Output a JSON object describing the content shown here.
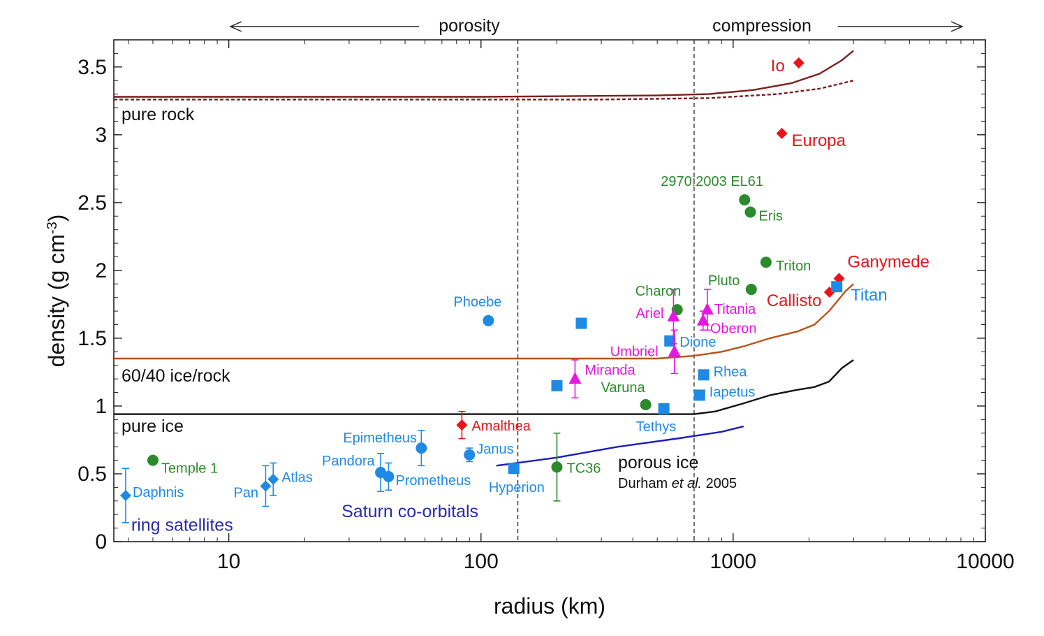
{
  "chart_data": {
    "type": "scatter",
    "xscale": "log",
    "xlim": [
      3.5,
      10000
    ],
    "ylim": [
      0,
      3.7
    ],
    "xlabel": "radius (km)",
    "ylabel": "density (g cm",
    "ylabel_sup": "-3",
    "ylabel_close": ")",
    "xticks": [
      {
        "value": 10,
        "label": "10"
      },
      {
        "value": 100,
        "label": "100"
      },
      {
        "value": 1000,
        "label": "1000"
      },
      {
        "value": 10000,
        "label": "10000"
      }
    ],
    "yticks": [
      {
        "value": 0,
        "label": "0"
      },
      {
        "value": 0.5,
        "label": "0.5"
      },
      {
        "value": 1,
        "label": "1"
      },
      {
        "value": 1.5,
        "label": "1.5"
      },
      {
        "value": 2,
        "label": "2"
      },
      {
        "value": 2.5,
        "label": "2.5"
      },
      {
        "value": 3,
        "label": "3"
      },
      {
        "value": 3.5,
        "label": "3.5"
      }
    ],
    "top_annotations": {
      "left": "porosity",
      "right": "compression"
    },
    "vlines": [
      140,
      700
    ],
    "colors": {
      "red": "#e8141b",
      "blue": "#1e8ae6",
      "green": "#2b8a2b",
      "magenta": "#e617e0",
      "navy": "#2a2aa8"
    },
    "curves": [
      {
        "name": "pure rock",
        "label": "pure rock",
        "color": "#7a1f1f",
        "dash": false,
        "points": [
          [
            3.5,
            3.28
          ],
          [
            100,
            3.28
          ],
          [
            500,
            3.29
          ],
          [
            800,
            3.3
          ],
          [
            1200,
            3.33
          ],
          [
            1700,
            3.38
          ],
          [
            2200,
            3.45
          ],
          [
            2700,
            3.55
          ],
          [
            3000,
            3.62
          ]
        ]
      },
      {
        "name": "pure rock (dashed)",
        "label": "",
        "color": "#7a1f1f",
        "dash": true,
        "points": [
          [
            3.5,
            3.26
          ],
          [
            300,
            3.26
          ],
          [
            800,
            3.27
          ],
          [
            1500,
            3.3
          ],
          [
            2200,
            3.34
          ],
          [
            3000,
            3.4
          ]
        ]
      },
      {
        "name": "60/40 ice/rock",
        "label": "60/40 ice/rock",
        "color": "#b8521a",
        "dash": false,
        "points": [
          [
            3.5,
            1.35
          ],
          [
            100,
            1.35
          ],
          [
            500,
            1.35
          ],
          [
            700,
            1.37
          ],
          [
            900,
            1.4
          ],
          [
            1100,
            1.44
          ],
          [
            1400,
            1.5
          ],
          [
            1800,
            1.55
          ],
          [
            2100,
            1.6
          ],
          [
            2400,
            1.7
          ],
          [
            2800,
            1.85
          ],
          [
            3000,
            1.9
          ]
        ]
      },
      {
        "name": "pure ice",
        "label": "pure ice",
        "color": "#111111",
        "dash": false,
        "points": [
          [
            3.5,
            0.94
          ],
          [
            700,
            0.94
          ],
          [
            850,
            0.96
          ],
          [
            1100,
            1.02
          ],
          [
            1400,
            1.08
          ],
          [
            1800,
            1.12
          ],
          [
            2100,
            1.14
          ],
          [
            2400,
            1.18
          ],
          [
            2700,
            1.28
          ],
          [
            3000,
            1.34
          ]
        ]
      },
      {
        "name": "porous ice",
        "label": "porous ice",
        "sublabel_prefix": "Durham ",
        "sublabel_italic": "et al.",
        "sublabel_suffix": " 2005",
        "color": "#1b1bc4",
        "dash": false,
        "points": [
          [
            115,
            0.56
          ],
          [
            200,
            0.62
          ],
          [
            350,
            0.7
          ],
          [
            600,
            0.76
          ],
          [
            900,
            0.81
          ],
          [
            1100,
            0.85
          ]
        ]
      }
    ],
    "points": [
      {
        "name": "Io",
        "r": 1820,
        "d": 3.53,
        "marker": "diamond",
        "color": "red",
        "label_dx": -40,
        "label_dy": 12,
        "size": "big"
      },
      {
        "name": "Europa",
        "r": 1560,
        "d": 3.01,
        "marker": "diamond",
        "color": "red",
        "label_dx": 14,
        "label_dy": 18,
        "size": "big"
      },
      {
        "name": "Ganymede",
        "r": 2630,
        "d": 1.94,
        "marker": "diamond",
        "color": "red",
        "label_dx": 12,
        "label_dy": -16,
        "size": "big"
      },
      {
        "name": "Callisto",
        "r": 2410,
        "d": 1.84,
        "marker": "diamond",
        "color": "red",
        "label_dx": -90,
        "label_dy": 20,
        "size": "big"
      },
      {
        "name": "Amalthea",
        "r": 84,
        "d": 0.86,
        "marker": "diamond",
        "color": "red",
        "err": 0.1,
        "label_dx": 14,
        "label_dy": 8
      },
      {
        "name": "Titan",
        "r": 2575,
        "d": 1.88,
        "marker": "square",
        "color": "blue",
        "label_dx": 20,
        "label_dy": 20,
        "size": "big"
      },
      {
        "name": "Phoebe",
        "r": 107,
        "d": 1.63,
        "marker": "circle",
        "color": "blue",
        "err": 0.03,
        "label_dx": -50,
        "label_dy": -20
      },
      {
        "name": "",
        "r": 250,
        "d": 1.61,
        "marker": "square",
        "color": "blue"
      },
      {
        "name": "Dione",
        "r": 561,
        "d": 1.48,
        "marker": "square",
        "color": "blue",
        "label_dx": 14,
        "label_dy": 8
      },
      {
        "name": "Rhea",
        "r": 764,
        "d": 1.23,
        "marker": "square",
        "color": "blue",
        "label_dx": 14,
        "label_dy": 2
      },
      {
        "name": "Iapetus",
        "r": 736,
        "d": 1.08,
        "marker": "square",
        "color": "blue",
        "label_dx": 14,
        "label_dy": 2
      },
      {
        "name": "",
        "r": 200,
        "d": 1.15,
        "marker": "square",
        "color": "blue"
      },
      {
        "name": "Tethys",
        "r": 531,
        "d": 0.98,
        "marker": "square",
        "color": "blue",
        "label_dx": -40,
        "label_dy": 32
      },
      {
        "name": "Hyperion",
        "r": 135,
        "d": 0.54,
        "marker": "square",
        "color": "blue",
        "label_dx": -36,
        "label_dy": 34
      },
      {
        "name": "Janus",
        "r": 90,
        "d": 0.64,
        "marker": "circle",
        "color": "blue",
        "err": 0.05,
        "label_dx": 10,
        "label_dy": -2
      },
      {
        "name": "Epimetheus",
        "r": 58,
        "d": 0.69,
        "marker": "circle",
        "color": "blue",
        "err": 0.13,
        "label_dx": -112,
        "label_dy": -8
      },
      {
        "name": "Pandora",
        "r": 40,
        "d": 0.51,
        "marker": "circle",
        "color": "blue",
        "err": 0.14,
        "label_dx": -84,
        "label_dy": -10
      },
      {
        "name": "Prometheus",
        "r": 43,
        "d": 0.48,
        "marker": "circle",
        "color": "blue",
        "err": 0.1,
        "label_dx": 10,
        "label_dy": 12
      },
      {
        "name": "Atlas",
        "r": 15,
        "d": 0.46,
        "marker": "diamond",
        "color": "blue",
        "err": 0.12,
        "label_dx": 12,
        "label_dy": 4
      },
      {
        "name": "Pan",
        "r": 14,
        "d": 0.41,
        "marker": "diamond",
        "color": "blue",
        "err": 0.15,
        "label_dx": -46,
        "label_dy": 16
      },
      {
        "name": "Daphnis",
        "r": 3.9,
        "d": 0.34,
        "marker": "diamond",
        "color": "blue",
        "err": 0.2,
        "label_dx": 10,
        "label_dy": 2
      },
      {
        "name": "Temple 1",
        "r": 5,
        "d": 0.6,
        "marker": "circle",
        "color": "green",
        "label_dx": 12,
        "label_dy": 18
      },
      {
        "name": "TC36",
        "r": 200,
        "d": 0.55,
        "marker": "circle",
        "color": "green",
        "err": 0.25,
        "label_dx": 14,
        "label_dy": 8
      },
      {
        "name": "Varuna",
        "r": 450,
        "d": 1.01,
        "marker": "circle",
        "color": "green",
        "label_dx": -64,
        "label_dy": -18
      },
      {
        "name": "Charon",
        "r": 600,
        "d": 1.71,
        "marker": "circle",
        "color": "green",
        "label_dx": -60,
        "label_dy": -20
      },
      {
        "name": "Pluto",
        "r": 1180,
        "d": 1.86,
        "marker": "circle",
        "color": "green",
        "label_dx": -62,
        "label_dy": -6
      },
      {
        "name": "Triton",
        "r": 1350,
        "d": 2.06,
        "marker": "circle",
        "color": "green",
        "label_dx": 14,
        "label_dy": 12
      },
      {
        "name": "Eris",
        "r": 1170,
        "d": 2.43,
        "marker": "circle",
        "color": "green",
        "label_dx": 12,
        "label_dy": 12
      },
      {
        "name": "2970:2003 EL61",
        "r": 1110,
        "d": 2.52,
        "marker": "circle",
        "color": "green",
        "label_dx": -120,
        "label_dy": -20
      },
      {
        "name": "Ariel",
        "r": 580,
        "d": 1.66,
        "marker": "triangle",
        "color": "magenta",
        "err": 0.2,
        "label_dx": -54,
        "label_dy": 2
      },
      {
        "name": "Titania",
        "r": 790,
        "d": 1.71,
        "marker": "triangle",
        "color": "magenta",
        "err": 0.15,
        "label_dx": 10,
        "label_dy": 6
      },
      {
        "name": "Oberon",
        "r": 760,
        "d": 1.63,
        "marker": "triangle",
        "color": "magenta",
        "err": 0.07,
        "label_dx": 10,
        "label_dy": 18
      },
      {
        "name": "Umbriel",
        "r": 585,
        "d": 1.4,
        "marker": "triangle",
        "color": "magenta",
        "err": 0.16,
        "label_dx": -92,
        "label_dy": 6
      },
      {
        "name": "Miranda",
        "r": 236,
        "d": 1.2,
        "marker": "triangle",
        "color": "magenta",
        "err": 0.14,
        "label_dx": 14,
        "label_dy": -6
      }
    ],
    "group_labels": [
      {
        "text": "ring satellites",
        "r": 4.1,
        "d": 0.08
      },
      {
        "text": "Saturn co-orbitals",
        "r": 28,
        "d": 0.18
      }
    ]
  }
}
